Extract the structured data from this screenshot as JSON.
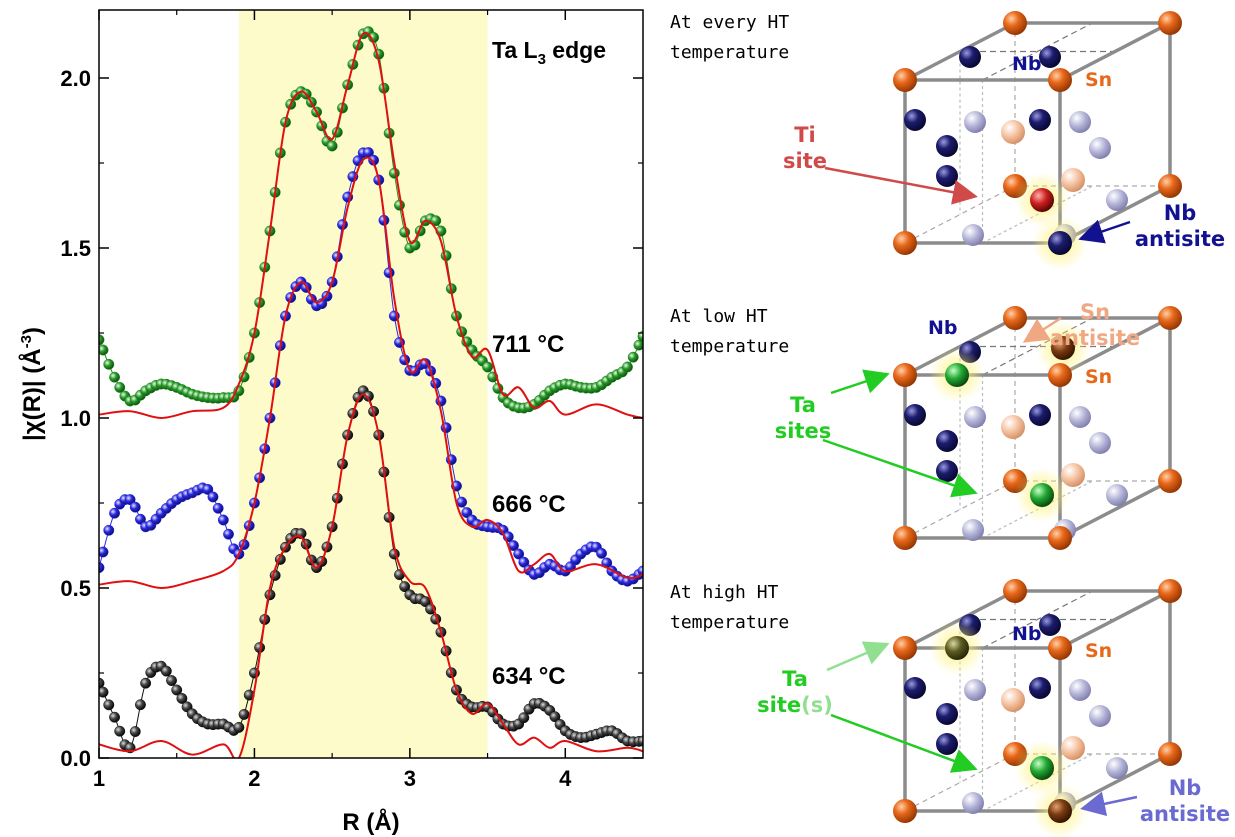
{
  "chart_data": {
    "type": "line",
    "xlabel": "R (Å)",
    "ylabel_main": "|χ(R)| (Å",
    "ylabel_sup": "-3",
    "ylabel_tail": ")",
    "xlim": [
      1,
      4.5
    ],
    "ylim": [
      0,
      2.2
    ],
    "x_ticks": [
      1,
      2,
      3,
      4
    ],
    "y_ticks": [
      0.0,
      0.5,
      1.0,
      1.5,
      2.0
    ],
    "y_tick_labels": [
      "0.0",
      "0.5",
      "1.0",
      "1.5",
      "2.0"
    ],
    "shaded_region": [
      1.9,
      3.5
    ],
    "annotation": {
      "text": "Ta L",
      "sub": "3",
      "tail": " edge",
      "color": "#2db82d"
    },
    "series": [
      {
        "name": "711 °C",
        "color": "#1f8a1f",
        "data": [
          [
            1.0,
            1.23
          ],
          [
            1.1,
            1.12
          ],
          [
            1.2,
            1.05
          ],
          [
            1.3,
            1.08
          ],
          [
            1.4,
            1.1
          ],
          [
            1.5,
            1.09
          ],
          [
            1.6,
            1.07
          ],
          [
            1.7,
            1.06
          ],
          [
            1.8,
            1.06
          ],
          [
            1.9,
            1.08
          ],
          [
            2.0,
            1.25
          ],
          [
            2.1,
            1.55
          ],
          [
            2.2,
            1.87
          ],
          [
            2.3,
            1.96
          ],
          [
            2.4,
            1.9
          ],
          [
            2.5,
            1.8
          ],
          [
            2.6,
            1.98
          ],
          [
            2.7,
            2.13
          ],
          [
            2.8,
            2.07
          ],
          [
            2.9,
            1.72
          ],
          [
            3.0,
            1.5
          ],
          [
            3.1,
            1.58
          ],
          [
            3.2,
            1.55
          ],
          [
            3.3,
            1.3
          ],
          [
            3.4,
            1.2
          ],
          [
            3.5,
            1.15
          ],
          [
            3.6,
            1.06
          ],
          [
            3.7,
            1.03
          ],
          [
            3.8,
            1.04
          ],
          [
            3.9,
            1.08
          ],
          [
            4.0,
            1.1
          ],
          [
            4.1,
            1.09
          ],
          [
            4.2,
            1.09
          ],
          [
            4.3,
            1.12
          ],
          [
            4.4,
            1.15
          ],
          [
            4.5,
            1.24
          ]
        ],
        "fit": [
          [
            1.0,
            1.01
          ],
          [
            1.2,
            1.02
          ],
          [
            1.4,
            1.0
          ],
          [
            1.6,
            1.02
          ],
          [
            1.8,
            1.03
          ],
          [
            1.9,
            1.1
          ],
          [
            2.0,
            1.25
          ],
          [
            2.1,
            1.55
          ],
          [
            2.2,
            1.87
          ],
          [
            2.3,
            1.96
          ],
          [
            2.4,
            1.9
          ],
          [
            2.5,
            1.82
          ],
          [
            2.6,
            1.98
          ],
          [
            2.7,
            2.13
          ],
          [
            2.8,
            2.05
          ],
          [
            2.9,
            1.75
          ],
          [
            3.0,
            1.52
          ],
          [
            3.1,
            1.58
          ],
          [
            3.2,
            1.52
          ],
          [
            3.3,
            1.3
          ],
          [
            3.4,
            1.18
          ],
          [
            3.5,
            1.2
          ],
          [
            3.6,
            1.07
          ],
          [
            3.7,
            1.09
          ],
          [
            3.8,
            1.03
          ],
          [
            3.9,
            1.05
          ],
          [
            4.0,
            1.01
          ],
          [
            4.2,
            1.04
          ],
          [
            4.4,
            1.01
          ],
          [
            4.5,
            1.0
          ]
        ]
      },
      {
        "name": "666 °C",
        "color": "#2a2ae0",
        "data": [
          [
            1.0,
            0.56
          ],
          [
            1.1,
            0.72
          ],
          [
            1.2,
            0.76
          ],
          [
            1.3,
            0.68
          ],
          [
            1.4,
            0.72
          ],
          [
            1.5,
            0.76
          ],
          [
            1.6,
            0.78
          ],
          [
            1.7,
            0.79
          ],
          [
            1.8,
            0.7
          ],
          [
            1.9,
            0.6
          ],
          [
            2.0,
            0.75
          ],
          [
            2.1,
            1.0
          ],
          [
            2.2,
            1.3
          ],
          [
            2.3,
            1.4
          ],
          [
            2.4,
            1.33
          ],
          [
            2.5,
            1.4
          ],
          [
            2.6,
            1.65
          ],
          [
            2.7,
            1.78
          ],
          [
            2.8,
            1.7
          ],
          [
            2.9,
            1.3
          ],
          [
            3.0,
            1.14
          ],
          [
            3.1,
            1.16
          ],
          [
            3.2,
            1.05
          ],
          [
            3.3,
            0.8
          ],
          [
            3.4,
            0.7
          ],
          [
            3.5,
            0.68
          ],
          [
            3.6,
            0.67
          ],
          [
            3.7,
            0.6
          ],
          [
            3.8,
            0.54
          ],
          [
            3.9,
            0.57
          ],
          [
            4.0,
            0.55
          ],
          [
            4.1,
            0.6
          ],
          [
            4.2,
            0.62
          ],
          [
            4.3,
            0.55
          ],
          [
            4.4,
            0.52
          ],
          [
            4.5,
            0.55
          ]
        ],
        "fit": [
          [
            1.0,
            0.51
          ],
          [
            1.2,
            0.52
          ],
          [
            1.4,
            0.5
          ],
          [
            1.6,
            0.52
          ],
          [
            1.8,
            0.55
          ],
          [
            1.9,
            0.6
          ],
          [
            2.0,
            0.75
          ],
          [
            2.1,
            1.0
          ],
          [
            2.2,
            1.3
          ],
          [
            2.3,
            1.4
          ],
          [
            2.4,
            1.34
          ],
          [
            2.5,
            1.4
          ],
          [
            2.6,
            1.62
          ],
          [
            2.7,
            1.76
          ],
          [
            2.8,
            1.7
          ],
          [
            2.9,
            1.35
          ],
          [
            3.0,
            1.14
          ],
          [
            3.1,
            1.17
          ],
          [
            3.2,
            1.02
          ],
          [
            3.3,
            0.75
          ],
          [
            3.4,
            0.68
          ],
          [
            3.5,
            0.7
          ],
          [
            3.6,
            0.66
          ],
          [
            3.7,
            0.55
          ],
          [
            3.8,
            0.57
          ],
          [
            3.9,
            0.6
          ],
          [
            4.0,
            0.55
          ],
          [
            4.2,
            0.57
          ],
          [
            4.4,
            0.53
          ],
          [
            4.5,
            0.54
          ]
        ]
      },
      {
        "name": "634 °C",
        "color": "#111111",
        "data": [
          [
            1.0,
            0.22
          ],
          [
            1.1,
            0.12
          ],
          [
            1.2,
            0.03
          ],
          [
            1.3,
            0.22
          ],
          [
            1.4,
            0.27
          ],
          [
            1.5,
            0.2
          ],
          [
            1.6,
            0.13
          ],
          [
            1.7,
            0.1
          ],
          [
            1.8,
            0.1
          ],
          [
            1.9,
            0.09
          ],
          [
            2.0,
            0.25
          ],
          [
            2.1,
            0.48
          ],
          [
            2.2,
            0.62
          ],
          [
            2.3,
            0.66
          ],
          [
            2.4,
            0.56
          ],
          [
            2.5,
            0.68
          ],
          [
            2.6,
            0.95
          ],
          [
            2.7,
            1.08
          ],
          [
            2.8,
            0.95
          ],
          [
            2.9,
            0.6
          ],
          [
            3.0,
            0.48
          ],
          [
            3.1,
            0.46
          ],
          [
            3.2,
            0.37
          ],
          [
            3.3,
            0.2
          ],
          [
            3.4,
            0.15
          ],
          [
            3.5,
            0.15
          ],
          [
            3.6,
            0.1
          ],
          [
            3.7,
            0.1
          ],
          [
            3.8,
            0.16
          ],
          [
            3.9,
            0.14
          ],
          [
            4.0,
            0.08
          ],
          [
            4.1,
            0.06
          ],
          [
            4.2,
            0.07
          ],
          [
            4.3,
            0.08
          ],
          [
            4.4,
            0.05
          ],
          [
            4.5,
            0.05
          ]
        ],
        "fit": [
          [
            1.0,
            0.04
          ],
          [
            1.2,
            0.02
          ],
          [
            1.4,
            0.05
          ],
          [
            1.6,
            0.01
          ],
          [
            1.8,
            0.04
          ],
          [
            1.9,
            0.0
          ],
          [
            2.0,
            0.2
          ],
          [
            2.1,
            0.5
          ],
          [
            2.2,
            0.62
          ],
          [
            2.3,
            0.65
          ],
          [
            2.4,
            0.56
          ],
          [
            2.5,
            0.68
          ],
          [
            2.6,
            0.95
          ],
          [
            2.7,
            1.07
          ],
          [
            2.8,
            0.95
          ],
          [
            2.9,
            0.62
          ],
          [
            3.0,
            0.52
          ],
          [
            3.1,
            0.5
          ],
          [
            3.2,
            0.37
          ],
          [
            3.3,
            0.2
          ],
          [
            3.4,
            0.13
          ],
          [
            3.5,
            0.16
          ],
          [
            3.6,
            0.1
          ],
          [
            3.7,
            0.04
          ],
          [
            3.8,
            0.06
          ],
          [
            3.9,
            0.03
          ],
          [
            4.0,
            0.05
          ],
          [
            4.2,
            0.02
          ],
          [
            4.4,
            0.03
          ],
          [
            4.5,
            0.02
          ]
        ]
      }
    ],
    "fit_color": "#e01010"
  },
  "diagram": {
    "panels": [
      {
        "caption_line1": "At every HT",
        "caption_line2": "temperature",
        "labels": {
          "nb_top": "Nb",
          "sn": "Sn",
          "ti_line1": "Ti",
          "ti_line2": "site",
          "nb_anti_line1": "Nb",
          "nb_anti_line2": "antisite"
        }
      },
      {
        "caption_line1": "At low HT",
        "caption_line2": "temperature",
        "labels": {
          "nb_top": "Nb",
          "sn": "Sn",
          "sn_anti_line1": "Sn",
          "sn_anti_line2": "antisite",
          "ta_line1": "Ta",
          "ta_line2": "sites"
        }
      },
      {
        "caption_line1": "At high HT",
        "caption_line2": "temperature",
        "labels": {
          "nb_top": "Nb",
          "sn": "Sn",
          "ta_line1": "Ta",
          "ta_line2_a": "site",
          "ta_line2_b": "(s)",
          "nb_anti_line1": "Nb",
          "nb_anti_line2": "antisite"
        }
      }
    ],
    "colors": {
      "sn": "#e8681a",
      "nb": "#1c1c6e",
      "nb_light": "#a8a8d0",
      "sn_light": "#f2b896",
      "ti": "#cc2020",
      "ta": "#22aa33",
      "ti_label": "#d04a4a",
      "nb_label": "#121290",
      "sn_anti_label": "#f0a882",
      "ta_label": "#22cc22",
      "nb_anti_label_light": "#6a6ad0"
    }
  }
}
